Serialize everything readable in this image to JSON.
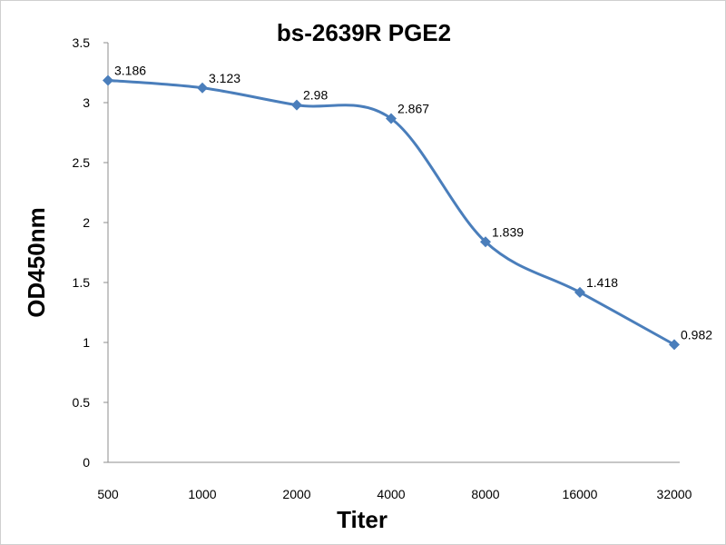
{
  "chart_data": {
    "type": "line",
    "title": "bs-2639R PGE2",
    "xlabel": "Titer",
    "ylabel": "OD450nm",
    "categories": [
      "500",
      "1000",
      "2000",
      "4000",
      "8000",
      "16000",
      "32000"
    ],
    "series": [
      {
        "values": [
          3.186,
          3.123,
          2.98,
          2.867,
          1.839,
          1.418,
          0.982
        ],
        "data_labels": [
          "3.186",
          "3.123",
          "2.98",
          "2.867",
          "1.839",
          "1.418",
          "0.982"
        ],
        "color": "#4a7ebb",
        "marker": "diamond",
        "smooth": true
      }
    ],
    "ylim": [
      0,
      3.5
    ],
    "yticks": [
      0,
      0.5,
      1,
      1.5,
      2,
      2.5,
      3,
      3.5
    ],
    "ytick_labels": [
      "0",
      "0.5",
      "1",
      "1.5",
      "2",
      "2.5",
      "3",
      "3.5"
    ],
    "grid": false,
    "legend": "none"
  }
}
